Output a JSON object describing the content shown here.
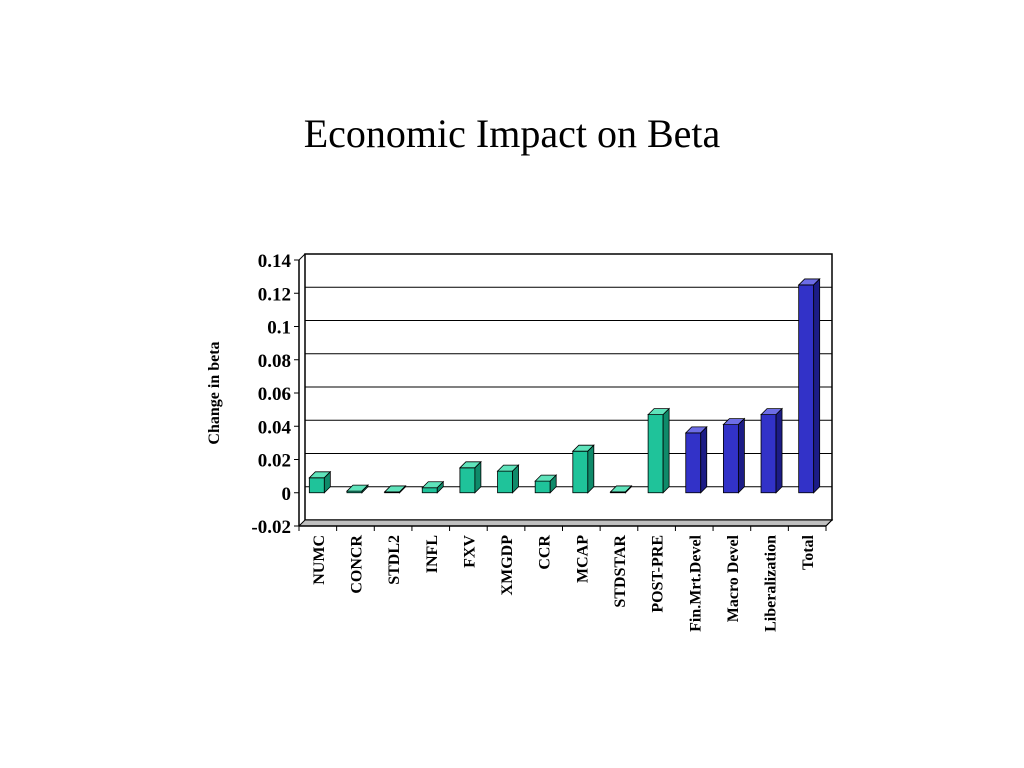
{
  "slide": {
    "title": "Economic Impact on Beta"
  },
  "chart_data": {
    "type": "bar",
    "title": "Economic Impact on Beta",
    "xlabel": "",
    "ylabel": "Change in beta",
    "ylim": [
      -0.02,
      0.14
    ],
    "yticks": [
      "0.14",
      "0.12",
      "0.1",
      "0.08",
      "0.06",
      "0.04",
      "0.02",
      "0",
      "-0.02"
    ],
    "ytick_values": [
      0.14,
      0.12,
      0.1,
      0.08,
      0.06,
      0.04,
      0.02,
      0,
      -0.02
    ],
    "grid": true,
    "style": "3d",
    "categories": [
      "NUMC",
      "CONCR",
      "STDL2",
      "INFL",
      "FXV",
      "XMGDP",
      "CCR",
      "MCAP",
      "STDSTAR",
      "POST-PRE",
      "Fin.Mrt.Devel",
      "Macro Devel",
      "Liberalization",
      "Total"
    ],
    "values": [
      0.009,
      0.001,
      0.0003,
      0.003,
      0.015,
      0.013,
      0.007,
      0.025,
      0.0002,
      0.047,
      0.036,
      0.041,
      0.047,
      0.125
    ],
    "bar_colors": [
      "#1fc39a",
      "#1fc39a",
      "#1fc39a",
      "#1fc39a",
      "#1fc39a",
      "#1fc39a",
      "#1fc39a",
      "#1fc39a",
      "#1fc39a",
      "#1fc39a",
      "#3232c8",
      "#3232c8",
      "#3232c8",
      "#3232c8"
    ],
    "colors": {
      "group1_front": "#1fc39a",
      "group1_top": "#5fe3bb",
      "group1_side": "#0f8a6a",
      "group2_front": "#3232c8",
      "group2_top": "#6d6de6",
      "group2_side": "#1c1c86",
      "floor": "#c0c0c0",
      "gridline": "#000000",
      "frame": "#000000"
    }
  }
}
